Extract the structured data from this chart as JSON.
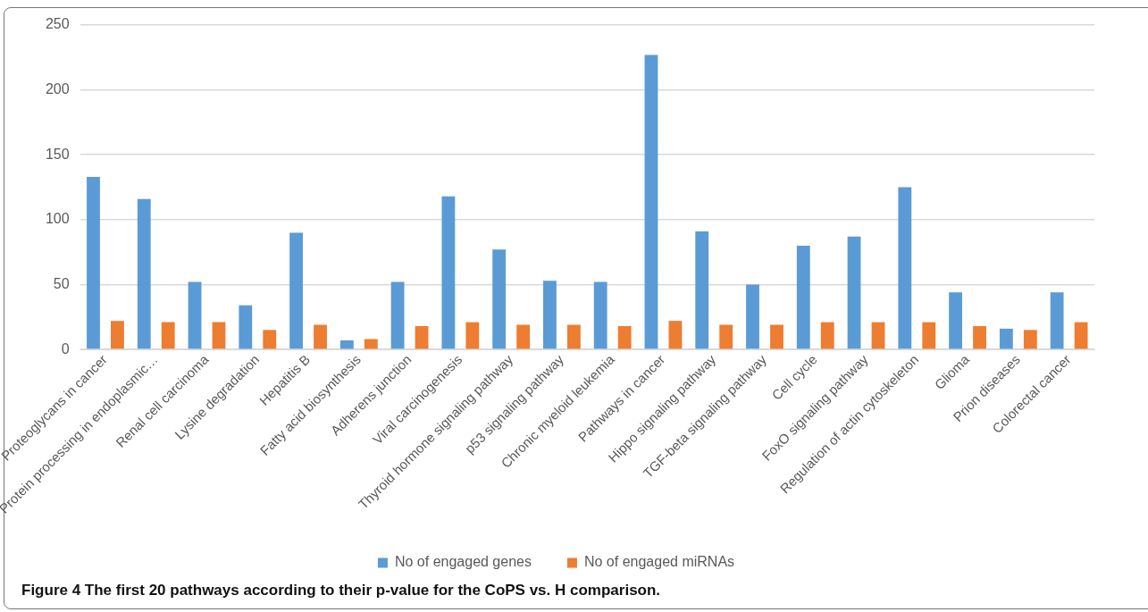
{
  "chart_data": {
    "type": "bar",
    "categories": [
      "Proteoglycans in cancer",
      "Protein processing in endoplasmic…",
      "Renal cell carcinoma",
      "Lysine degradation",
      "Hepatitis B",
      "Fatty acid biosynthesis",
      "Adherens junction",
      "Viral carcinogenesis",
      "Thyroid hormone signaling pathway",
      "p53 signaling pathway",
      "Chronic myeloid leukemia",
      "Pathways in cancer",
      "Hippo signaling pathway",
      "TGF-beta signaling pathway",
      "Cell cycle",
      "FoxO signaling pathway",
      "Regulation of actin cytoskeleton",
      "Glioma",
      "Prion diseases",
      "Colorectal cancer"
    ],
    "series": [
      {
        "name": "No of engaged genes",
        "color": "#5b9bd5",
        "values": [
          133,
          116,
          52,
          34,
          90,
          7,
          52,
          118,
          77,
          53,
          52,
          227,
          91,
          50,
          80,
          87,
          125,
          44,
          16,
          44
        ]
      },
      {
        "name": "No of engaged miRNAs",
        "color": "#ed7d31",
        "values": [
          22,
          21,
          21,
          15,
          19,
          8,
          18,
          21,
          19,
          19,
          18,
          22,
          19,
          19,
          21,
          21,
          21,
          18,
          15,
          21
        ]
      }
    ],
    "ylim": [
      0,
      250
    ],
    "yticks": [
      0,
      50,
      100,
      150,
      200,
      250
    ],
    "grid": "y",
    "legend": "bottom",
    "annotations": [
      "Figure 4 The first 20 pathways according to their p-value for the CoPS vs. H comparison."
    ]
  }
}
